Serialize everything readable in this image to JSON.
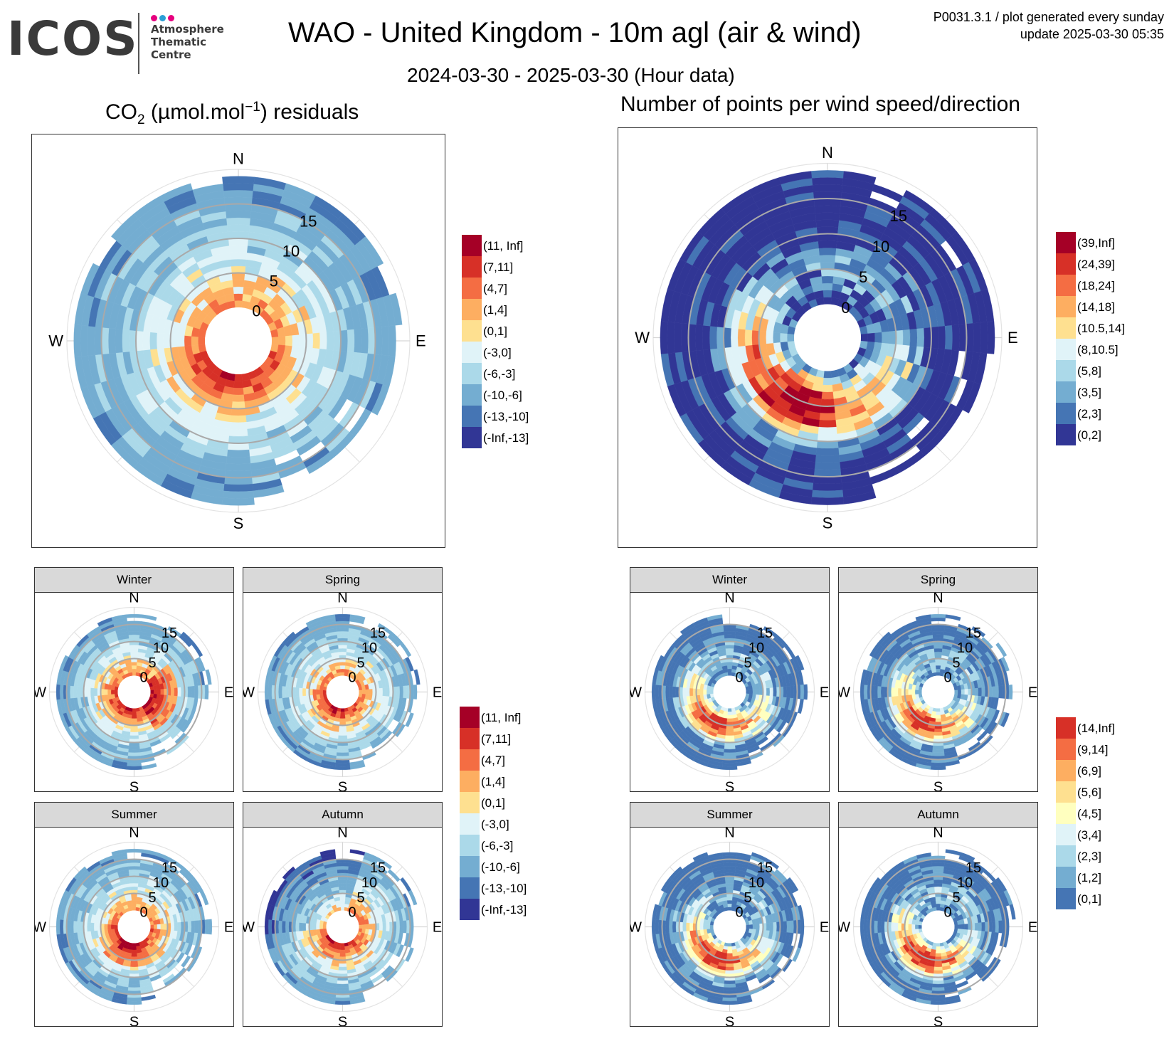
{
  "header": {
    "logo_text": "ICOS",
    "logo_sub": [
      "Atmosphere",
      "Thematic",
      "Centre"
    ],
    "logo_dot_colors": [
      "#e6007e",
      "#2a9fd6",
      "#e6007e"
    ],
    "title": "WAO - United Kingdom - 10m agl (air & wind)",
    "subtitle": "2024-03-30 - 2025-03-30 (Hour data)",
    "meta_line1": "P0031.3.1 / plot generated every sunday",
    "meta_line2": "update  2025-03-30 05:35"
  },
  "left_title": {
    "prefix": "CO",
    "sub": "2",
    "unit_open": " (µmol.mol",
    "sup": "−1",
    "unit_close": ") residuals"
  },
  "right_title": "Number of points per wind speed/direction",
  "compass": {
    "n": "N",
    "e": "E",
    "s": "S",
    "w": "W"
  },
  "speed_ticks": [
    "0",
    "5",
    "10",
    "15"
  ],
  "season_labels": [
    "Winter",
    "Spring",
    "Summer",
    "Autumn"
  ],
  "legend_co2": [
    {
      "label": "(11, Inf]",
      "color": "#a50026"
    },
    {
      "label": "(7,11]",
      "color": "#d73027"
    },
    {
      "label": "(4,7]",
      "color": "#f46d43"
    },
    {
      "label": "(1,4]",
      "color": "#fdae61"
    },
    {
      "label": "(0,1]",
      "color": "#fee090"
    },
    {
      "label": "(-3,0]",
      "color": "#e0f3f8"
    },
    {
      "label": "(-6,-3]",
      "color": "#abd9e9"
    },
    {
      "label": "(-10,-6]",
      "color": "#74add1"
    },
    {
      "label": "(-13,-10]",
      "color": "#4575b4"
    },
    {
      "label": "(-Inf,-13]",
      "color": "#313695"
    }
  ],
  "legend_count": [
    {
      "label": "(39,Inf]",
      "color": "#a50026"
    },
    {
      "label": "(24,39]",
      "color": "#d73027"
    },
    {
      "label": "(18,24]",
      "color": "#f46d43"
    },
    {
      "label": "(14,18]",
      "color": "#fdae61"
    },
    {
      "label": "(10.5,14]",
      "color": "#fee090"
    },
    {
      "label": "(8,10.5]",
      "color": "#e0f3f8"
    },
    {
      "label": "(5,8]",
      "color": "#abd9e9"
    },
    {
      "label": "(3,5]",
      "color": "#74add1"
    },
    {
      "label": "(2,3]",
      "color": "#4575b4"
    },
    {
      "label": "(0,2]",
      "color": "#313695"
    }
  ],
  "legend_count_season": [
    {
      "label": "(14,Inf]",
      "color": "#d73027"
    },
    {
      "label": "(9,14]",
      "color": "#f46d43"
    },
    {
      "label": "(6,9]",
      "color": "#fdae61"
    },
    {
      "label": "(5,6]",
      "color": "#fee090"
    },
    {
      "label": "(4,5]",
      "color": "#ffffbf"
    },
    {
      "label": "(3,4]",
      "color": "#e0f3f8"
    },
    {
      "label": "(2,3]",
      "color": "#abd9e9"
    },
    {
      "label": "(1,2]",
      "color": "#74add1"
    },
    {
      "label": "(0,1]",
      "color": "#4575b4"
    }
  ],
  "chart_data": [
    {
      "type": "heatmap",
      "subtype": "polar wind-rose heatmap",
      "title": "CO2 (µmol.mol-1) residuals",
      "theta": "wind direction (N/E/S/W)",
      "radial": "wind speed",
      "radial_ticks": [
        0,
        5,
        10,
        15
      ],
      "pattern": "positive residuals (red/orange) at low wind speeds mainly from SE–SW; negative residuals (blue) at higher speeds, strongest from SW and NW",
      "legend": [
        "(11, Inf]",
        "(7,11]",
        "(4,7]",
        "(1,4]",
        "(0,1]",
        "(-3,0]",
        "(-6,-3]",
        "(-10,-6]",
        "(-13,-10]",
        "(-Inf,-13]"
      ]
    },
    {
      "type": "heatmap",
      "subtype": "polar wind-rose heatmap",
      "title": "Number of points per wind speed/direction",
      "radial_ticks": [
        0,
        5,
        10,
        15
      ],
      "pattern": "highest counts (dark red) from S–SW at 2–10 m/s; sparse counts (dark blue) at the outer edge, especially NW, N and E",
      "legend": [
        "(39,Inf]",
        "(24,39]",
        "(18,24]",
        "(14,18]",
        "(10.5,14]",
        "(8,10.5]",
        "(5,8]",
        "(3,5]",
        "(2,3]",
        "(0,2]"
      ]
    },
    {
      "type": "heatmap",
      "subtype": "seasonal polar CO2 residuals",
      "facets": [
        "Winter",
        "Spring",
        "Summer",
        "Autumn"
      ],
      "radial_ticks": [
        0,
        5,
        10,
        15
      ]
    },
    {
      "type": "heatmap",
      "subtype": "seasonal polar point counts",
      "facets": [
        "Winter",
        "Spring",
        "Summer",
        "Autumn"
      ],
      "radial_ticks": [
        0,
        5,
        10,
        15
      ],
      "legend": [
        "(14,Inf]",
        "(9,14]",
        "(6,9]",
        "(5,6]",
        "(4,5]",
        "(3,4]",
        "(2,3]",
        "(1,2]",
        "(0,1]"
      ]
    }
  ]
}
